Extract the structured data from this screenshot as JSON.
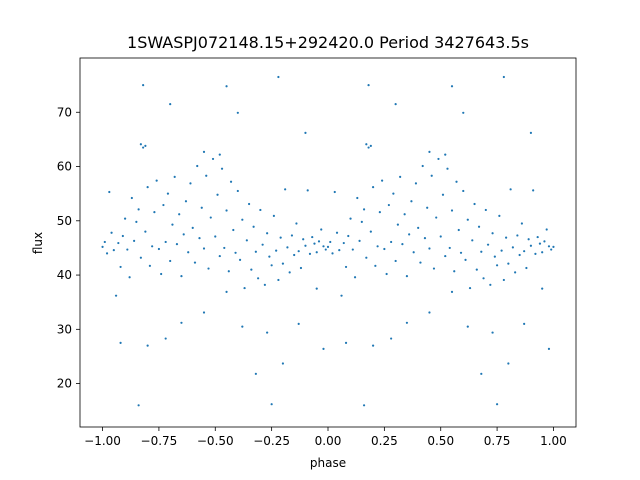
{
  "chart_data": {
    "type": "scatter",
    "title": "1SWASPJ072148.15+292420.0 Period 3427643.5s",
    "xlabel": "phase",
    "ylabel": "flux",
    "xlim": [
      -1.1,
      1.1
    ],
    "ylim": [
      12,
      80
    ],
    "xticks": [
      -1.0,
      -0.75,
      -0.5,
      -0.25,
      0.0,
      0.25,
      0.5,
      0.75,
      1.0
    ],
    "xtick_labels": [
      "−1.00",
      "−0.75",
      "−0.50",
      "−0.25",
      "0.00",
      "0.25",
      "0.50",
      "0.75",
      "1.00"
    ],
    "yticks": [
      20,
      30,
      40,
      50,
      60,
      70
    ],
    "ytick_labels": [
      "20",
      "30",
      "40",
      "50",
      "60",
      "70"
    ],
    "grid": false,
    "marker_color": "#1f77b4",
    "series": [
      {
        "points": [
          [
            -1.0,
            45.2
          ],
          [
            -0.99,
            46.1
          ],
          [
            -0.98,
            44.0
          ],
          [
            -0.97,
            55.3
          ],
          [
            -0.96,
            47.8
          ],
          [
            -0.95,
            44.6
          ],
          [
            -0.94,
            36.2
          ],
          [
            -0.93,
            45.9
          ],
          [
            -0.92,
            41.5
          ],
          [
            -0.91,
            47.2
          ],
          [
            -0.9,
            50.4
          ],
          [
            -0.89,
            44.7
          ],
          [
            -0.88,
            39.6
          ],
          [
            -0.87,
            54.2
          ],
          [
            -0.86,
            46.3
          ],
          [
            -0.85,
            49.8
          ],
          [
            -0.84,
            52.1
          ],
          [
            -0.83,
            43.2
          ],
          [
            -0.82,
            63.5
          ],
          [
            -0.81,
            48.0
          ],
          [
            -0.8,
            56.2
          ],
          [
            -0.79,
            41.7
          ],
          [
            -0.78,
            45.3
          ],
          [
            -0.77,
            51.6
          ],
          [
            -0.76,
            57.4
          ],
          [
            -0.75,
            44.8
          ],
          [
            -0.74,
            40.2
          ],
          [
            -0.73,
            52.9
          ],
          [
            -0.72,
            46.1
          ],
          [
            -0.71,
            55.0
          ],
          [
            -0.7,
            42.6
          ],
          [
            -0.69,
            49.3
          ],
          [
            -0.68,
            58.1
          ],
          [
            -0.67,
            45.7
          ],
          [
            -0.66,
            51.2
          ],
          [
            -0.65,
            39.8
          ],
          [
            -0.64,
            47.5
          ],
          [
            -0.63,
            53.6
          ],
          [
            -0.62,
            44.2
          ],
          [
            -0.61,
            56.9
          ],
          [
            -0.6,
            48.7
          ],
          [
            -0.59,
            42.3
          ],
          [
            -0.58,
            60.1
          ],
          [
            -0.57,
            46.8
          ],
          [
            -0.56,
            52.4
          ],
          [
            -0.55,
            44.9
          ],
          [
            -0.54,
            58.3
          ],
          [
            -0.53,
            41.2
          ],
          [
            -0.52,
            50.6
          ],
          [
            -0.51,
            61.4
          ],
          [
            -0.5,
            47.1
          ],
          [
            -0.49,
            54.8
          ],
          [
            -0.48,
            43.5
          ],
          [
            -0.47,
            59.6
          ],
          [
            -0.46,
            45.0
          ],
          [
            -0.45,
            51.9
          ],
          [
            -0.44,
            40.7
          ],
          [
            -0.43,
            57.2
          ],
          [
            -0.42,
            48.3
          ],
          [
            -0.41,
            44.1
          ],
          [
            -0.4,
            55.5
          ],
          [
            -0.39,
            42.8
          ],
          [
            -0.38,
            50.2
          ],
          [
            -0.37,
            37.6
          ],
          [
            -0.36,
            46.4
          ],
          [
            -0.35,
            53.1
          ],
          [
            -0.34,
            41.0
          ],
          [
            -0.33,
            48.9
          ],
          [
            -0.32,
            44.3
          ],
          [
            -0.31,
            39.4
          ],
          [
            -0.3,
            52.0
          ],
          [
            -0.29,
            45.6
          ],
          [
            -0.28,
            38.2
          ],
          [
            -0.27,
            47.7
          ],
          [
            -0.26,
            43.4
          ],
          [
            -0.25,
            41.8
          ],
          [
            -0.24,
            50.9
          ],
          [
            -0.23,
            44.5
          ],
          [
            -0.22,
            39.1
          ],
          [
            -0.21,
            46.9
          ],
          [
            -0.2,
            42.1
          ],
          [
            -0.19,
            55.8
          ],
          [
            -0.18,
            45.1
          ],
          [
            -0.17,
            40.5
          ],
          [
            -0.16,
            47.3
          ],
          [
            -0.15,
            43.7
          ],
          [
            -0.14,
            49.5
          ],
          [
            -0.13,
            44.4
          ],
          [
            -0.12,
            41.3
          ],
          [
            -0.11,
            46.6
          ],
          [
            -0.1,
            45.4
          ],
          [
            -0.09,
            55.6
          ],
          [
            -0.08,
            43.9
          ],
          [
            -0.07,
            47.0
          ],
          [
            -0.06,
            45.8
          ],
          [
            -0.05,
            44.2
          ],
          [
            -0.04,
            46.2
          ],
          [
            -0.03,
            48.4
          ],
          [
            -0.02,
            45.3
          ],
          [
            -0.01,
            44.7
          ],
          [
            0.0,
            45.2
          ],
          [
            0.01,
            46.1
          ],
          [
            0.02,
            44.0
          ],
          [
            0.03,
            55.3
          ],
          [
            0.04,
            47.8
          ],
          [
            0.05,
            44.6
          ],
          [
            0.06,
            36.2
          ],
          [
            0.07,
            45.9
          ],
          [
            0.08,
            41.5
          ],
          [
            0.09,
            47.2
          ],
          [
            0.1,
            50.4
          ],
          [
            0.11,
            44.7
          ],
          [
            0.12,
            39.6
          ],
          [
            0.13,
            54.2
          ],
          [
            0.14,
            46.3
          ],
          [
            0.15,
            49.8
          ],
          [
            0.16,
            52.1
          ],
          [
            0.17,
            43.2
          ],
          [
            0.18,
            63.5
          ],
          [
            0.19,
            48.0
          ],
          [
            0.2,
            56.2
          ],
          [
            0.21,
            41.7
          ],
          [
            0.22,
            45.3
          ],
          [
            0.23,
            51.6
          ],
          [
            0.24,
            57.4
          ],
          [
            0.25,
            44.8
          ],
          [
            0.26,
            40.2
          ],
          [
            0.27,
            52.9
          ],
          [
            0.28,
            46.1
          ],
          [
            0.29,
            55.0
          ],
          [
            0.3,
            42.6
          ],
          [
            0.31,
            49.3
          ],
          [
            0.32,
            58.1
          ],
          [
            0.33,
            45.7
          ],
          [
            0.34,
            51.2
          ],
          [
            0.35,
            39.8
          ],
          [
            0.36,
            47.5
          ],
          [
            0.37,
            53.6
          ],
          [
            0.38,
            44.2
          ],
          [
            0.39,
            56.9
          ],
          [
            0.4,
            48.7
          ],
          [
            0.41,
            42.3
          ],
          [
            0.42,
            60.1
          ],
          [
            0.43,
            46.8
          ],
          [
            0.44,
            52.4
          ],
          [
            0.45,
            44.9
          ],
          [
            0.46,
            58.3
          ],
          [
            0.47,
            41.2
          ],
          [
            0.48,
            50.6
          ],
          [
            0.49,
            61.4
          ],
          [
            0.5,
            47.1
          ],
          [
            0.51,
            54.8
          ],
          [
            0.52,
            43.5
          ],
          [
            0.53,
            59.6
          ],
          [
            0.54,
            45.0
          ],
          [
            0.55,
            51.9
          ],
          [
            0.56,
            40.7
          ],
          [
            0.57,
            57.2
          ],
          [
            0.58,
            48.3
          ],
          [
            0.59,
            44.1
          ],
          [
            0.6,
            55.5
          ],
          [
            0.61,
            42.8
          ],
          [
            0.62,
            50.2
          ],
          [
            0.63,
            37.6
          ],
          [
            0.64,
            46.4
          ],
          [
            0.65,
            53.1
          ],
          [
            0.66,
            41.0
          ],
          [
            0.67,
            48.9
          ],
          [
            0.68,
            44.3
          ],
          [
            0.69,
            39.4
          ],
          [
            0.7,
            52.0
          ],
          [
            0.71,
            45.6
          ],
          [
            0.72,
            38.2
          ],
          [
            0.73,
            47.7
          ],
          [
            0.74,
            43.4
          ],
          [
            0.75,
            41.8
          ],
          [
            0.76,
            50.9
          ],
          [
            0.77,
            44.5
          ],
          [
            0.78,
            39.1
          ],
          [
            0.79,
            46.9
          ],
          [
            0.8,
            42.1
          ],
          [
            0.81,
            55.8
          ],
          [
            0.82,
            45.1
          ],
          [
            0.83,
            40.5
          ],
          [
            0.84,
            47.3
          ],
          [
            0.85,
            43.7
          ],
          [
            0.86,
            49.5
          ],
          [
            0.87,
            44.4
          ],
          [
            0.88,
            41.3
          ],
          [
            0.89,
            46.6
          ],
          [
            0.9,
            45.4
          ],
          [
            0.91,
            55.6
          ],
          [
            0.92,
            43.9
          ],
          [
            0.93,
            47.0
          ],
          [
            0.94,
            45.8
          ],
          [
            0.95,
            44.2
          ],
          [
            0.96,
            46.2
          ],
          [
            0.97,
            48.4
          ],
          [
            0.98,
            45.3
          ],
          [
            0.99,
            44.7
          ],
          [
            1.0,
            45.2
          ],
          [
            -0.92,
            27.5
          ],
          [
            -0.84,
            16.0
          ],
          [
            -0.8,
            27.0
          ],
          [
            -0.72,
            28.3
          ],
          [
            -0.65,
            31.2
          ],
          [
            -0.55,
            33.1
          ],
          [
            -0.45,
            36.9
          ],
          [
            -0.38,
            30.5
          ],
          [
            -0.32,
            21.8
          ],
          [
            -0.27,
            29.4
          ],
          [
            -0.25,
            16.2
          ],
          [
            -0.2,
            23.7
          ],
          [
            -0.13,
            31.0
          ],
          [
            -0.05,
            37.5
          ],
          [
            -0.02,
            26.4
          ],
          [
            0.08,
            27.5
          ],
          [
            0.16,
            16.0
          ],
          [
            0.2,
            27.0
          ],
          [
            0.28,
            28.3
          ],
          [
            0.35,
            31.2
          ],
          [
            0.45,
            33.1
          ],
          [
            0.55,
            36.9
          ],
          [
            0.62,
            30.5
          ],
          [
            0.68,
            21.8
          ],
          [
            0.73,
            29.4
          ],
          [
            0.75,
            16.2
          ],
          [
            0.8,
            23.7
          ],
          [
            0.87,
            31.0
          ],
          [
            0.95,
            37.5
          ],
          [
            0.98,
            26.4
          ],
          [
            -0.82,
            75.0
          ],
          [
            -0.7,
            71.5
          ],
          [
            -0.45,
            74.8
          ],
          [
            -0.4,
            69.9
          ],
          [
            -0.22,
            76.5
          ],
          [
            -0.1,
            66.2
          ],
          [
            0.18,
            75.0
          ],
          [
            0.3,
            71.5
          ],
          [
            0.55,
            74.8
          ],
          [
            0.6,
            69.9
          ],
          [
            0.78,
            76.5
          ],
          [
            0.9,
            66.2
          ],
          [
            -0.83,
            64.1
          ],
          [
            -0.81,
            63.8
          ],
          [
            0.17,
            64.1
          ],
          [
            0.19,
            63.8
          ],
          [
            -0.55,
            62.7
          ],
          [
            -0.48,
            62.2
          ],
          [
            0.45,
            62.7
          ],
          [
            0.52,
            62.2
          ]
        ]
      }
    ]
  }
}
